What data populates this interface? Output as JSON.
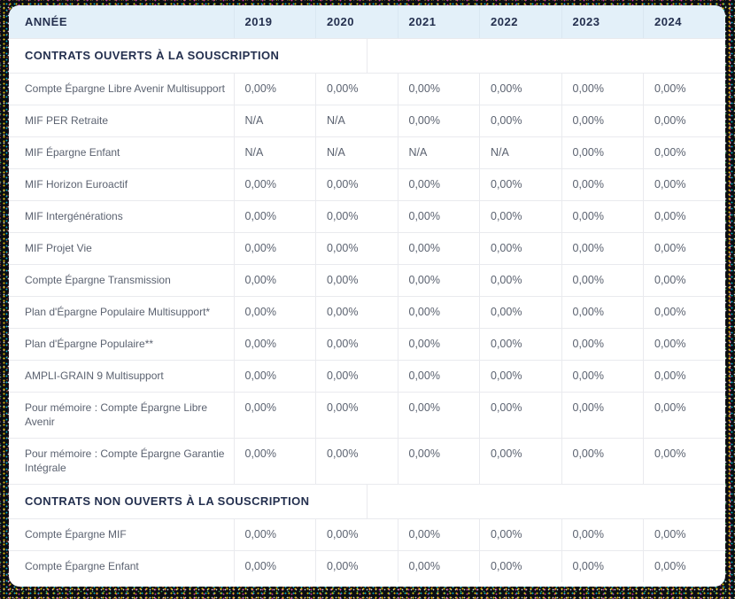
{
  "colors": {
    "header_bg": "#e3f0f9",
    "header_divider": "#d9e7f1",
    "heading_text": "#24304f",
    "cell_text": "#5b6270",
    "border": "#e9eaee",
    "card_bg": "#ffffff"
  },
  "table": {
    "header": {
      "year_label": "ANNÉE",
      "years": [
        "2019",
        "2020",
        "2021",
        "2022",
        "2023",
        "2024"
      ]
    },
    "sections": [
      {
        "title": "CONTRATS OUVERTS À LA SOUSCRIPTION",
        "rows": [
          {
            "label": "Compte Épargne Libre Avenir Multisupport",
            "values": [
              "0,00%",
              "0,00%",
              "0,00%",
              "0,00%",
              "0,00%",
              "0,00%"
            ]
          },
          {
            "label": "MIF PER Retraite",
            "values": [
              "N/A",
              "N/A",
              "0,00%",
              "0,00%",
              "0,00%",
              "0,00%"
            ]
          },
          {
            "label": "MIF Épargne Enfant",
            "values": [
              "N/A",
              "N/A",
              "N/A",
              "N/A",
              "0,00%",
              "0,00%"
            ]
          },
          {
            "label": "MIF Horizon Euroactif",
            "values": [
              "0,00%",
              "0,00%",
              "0,00%",
              "0,00%",
              "0,00%",
              "0,00%"
            ]
          },
          {
            "label": "MIF Intergénérations",
            "values": [
              "0,00%",
              "0,00%",
              "0,00%",
              "0,00%",
              "0,00%",
              "0,00%"
            ]
          },
          {
            "label": "MIF Projet Vie",
            "values": [
              "0,00%",
              "0,00%",
              "0,00%",
              "0,00%",
              "0,00%",
              "0,00%"
            ]
          },
          {
            "label": "Compte Épargne Transmission",
            "values": [
              "0,00%",
              "0,00%",
              "0,00%",
              "0,00%",
              "0,00%",
              "0,00%"
            ]
          },
          {
            "label": "Plan d'Épargne Populaire Multisupport*",
            "values": [
              "0,00%",
              "0,00%",
              "0,00%",
              "0,00%",
              "0,00%",
              "0,00%"
            ]
          },
          {
            "label": "Plan d'Épargne Populaire**",
            "values": [
              "0,00%",
              "0,00%",
              "0,00%",
              "0,00%",
              "0,00%",
              "0,00%"
            ]
          },
          {
            "label": "AMPLI-GRAIN 9 Multisupport",
            "values": [
              "0,00%",
              "0,00%",
              "0,00%",
              "0,00%",
              "0,00%",
              "0,00%"
            ]
          },
          {
            "label": "Pour mémoire : Compte Épargne Libre Avenir",
            "values": [
              "0,00%",
              "0,00%",
              "0,00%",
              "0,00%",
              "0,00%",
              "0,00%"
            ]
          },
          {
            "label": "Pour mémoire : Compte Épargne Garantie Intégrale",
            "values": [
              "0,00%",
              "0,00%",
              "0,00%",
              "0,00%",
              "0,00%",
              "0,00%"
            ]
          }
        ]
      },
      {
        "title": "CONTRATS NON OUVERTS À LA SOUSCRIPTION",
        "rows": [
          {
            "label": "Compte Épargne MIF",
            "values": [
              "0,00%",
              "0,00%",
              "0,00%",
              "0,00%",
              "0,00%",
              "0,00%"
            ]
          },
          {
            "label": "Compte Épargne Enfant",
            "values": [
              "0,00%",
              "0,00%",
              "0,00%",
              "0,00%",
              "0,00%",
              "0,00%"
            ]
          }
        ]
      }
    ]
  }
}
